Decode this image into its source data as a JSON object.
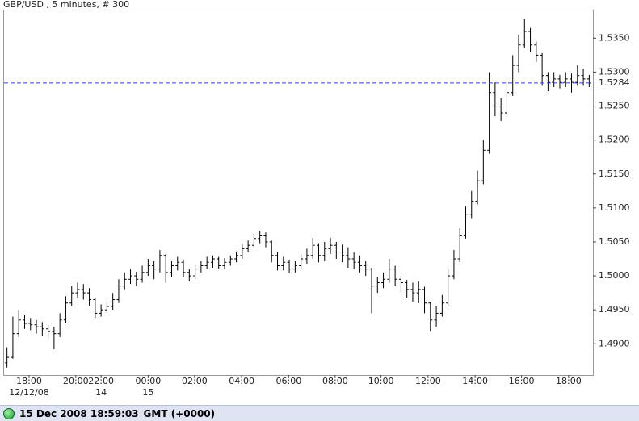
{
  "chart_data": {
    "type": "ohlc",
    "title": "GBP/USD , 5 minutes, # 300",
    "color": "#000000",
    "current_color": "#3344ee",
    "open": [
      1.4872,
      1.488,
      1.4915,
      1.4935,
      1.493,
      1.4928,
      1.4925,
      1.4922,
      1.4918,
      1.4915,
      1.4935,
      1.496,
      1.4975,
      1.498,
      1.4975,
      1.4965,
      1.4945,
      1.495,
      1.4955,
      1.4965,
      1.4985,
      1.4995,
      1.5,
      1.4995,
      1.5005,
      1.5015,
      1.501,
      1.503,
      1.5005,
      1.5015,
      1.502,
      1.5005,
      1.5,
      1.501,
      1.5015,
      1.502,
      1.5025,
      1.5015,
      1.502,
      1.5025,
      1.503,
      1.504,
      1.5045,
      1.5055,
      1.506,
      1.505,
      1.503,
      1.5015,
      1.502,
      1.501,
      1.5015,
      1.5025,
      1.503,
      1.5045,
      1.503,
      1.504,
      1.5045,
      1.5035,
      1.503,
      1.5025,
      1.502,
      1.5015,
      1.501,
      1.4985,
      1.499,
      1.4995,
      1.501,
      1.4995,
      1.499,
      1.498,
      1.4975,
      1.498,
      1.496,
      1.4935,
      1.4945,
      1.496,
      1.5,
      1.5025,
      1.506,
      1.509,
      1.511,
      1.514,
      1.5185,
      1.527,
      1.525,
      1.524,
      1.527,
      1.531,
      1.534,
      1.536,
      1.534,
      1.5325,
      1.5295,
      1.5285,
      1.529,
      1.5285,
      1.529,
      1.5285,
      1.5295,
      1.529
    ],
    "high": [
      1.4895,
      1.494,
      1.495,
      1.4942,
      1.4938,
      1.4935,
      1.4932,
      1.4928,
      1.4925,
      1.4945,
      1.497,
      1.4985,
      1.499,
      1.4988,
      1.4982,
      1.4968,
      1.4958,
      1.4962,
      1.4975,
      1.4995,
      1.5005,
      1.501,
      1.5006,
      1.5015,
      1.5025,
      1.5022,
      1.5038,
      1.5032,
      1.5022,
      1.5028,
      1.5024,
      1.501,
      1.5016,
      1.5022,
      1.5028,
      1.503,
      1.5028,
      1.5026,
      1.503,
      1.5036,
      1.5046,
      1.5052,
      1.5062,
      1.5066,
      1.5064,
      1.5052,
      1.5035,
      1.5028,
      1.5024,
      1.5022,
      1.5032,
      1.504,
      1.5056,
      1.5048,
      1.505,
      1.5056,
      1.505,
      1.5046,
      1.5042,
      1.5035,
      1.503,
      1.5022,
      1.5012,
      1.4998,
      1.5005,
      1.5025,
      1.5015,
      1.5,
      1.4994,
      1.499,
      1.4992,
      1.4984,
      1.4962,
      1.4955,
      1.4972,
      1.501,
      1.5038,
      1.507,
      1.5102,
      1.5125,
      1.5155,
      1.52,
      1.53,
      1.5285,
      1.5262,
      1.529,
      1.5325,
      1.5355,
      1.5378,
      1.5365,
      1.5345,
      1.5328,
      1.53,
      1.53,
      1.5296,
      1.53,
      1.5298,
      1.531,
      1.5305,
      1.5296
    ],
    "low": [
      1.4865,
      1.4878,
      1.491,
      1.4922,
      1.492,
      1.4915,
      1.4912,
      1.4908,
      1.4892,
      1.491,
      1.493,
      1.4955,
      1.4968,
      1.4965,
      1.4955,
      1.4938,
      1.494,
      1.4945,
      1.495,
      1.496,
      1.498,
      1.4988,
      1.4985,
      1.499,
      1.5,
      1.4995,
      1.5005,
      1.499,
      1.4998,
      1.5008,
      1.4998,
      1.4992,
      1.4995,
      1.5005,
      1.501,
      1.5012,
      1.501,
      1.501,
      1.5015,
      1.502,
      1.5025,
      1.5035,
      1.504,
      1.5048,
      1.5042,
      1.502,
      1.5008,
      1.5008,
      1.5004,
      1.5005,
      1.501,
      1.5018,
      1.5025,
      1.502,
      1.5022,
      1.5032,
      1.5025,
      1.502,
      1.5012,
      1.501,
      1.5005,
      1.5,
      1.4945,
      1.4975,
      1.4982,
      1.499,
      1.4985,
      1.4975,
      1.4968,
      1.4962,
      1.496,
      1.4945,
      1.4918,
      1.4925,
      1.494,
      1.4955,
      1.4995,
      1.502,
      1.5055,
      1.5085,
      1.5105,
      1.5135,
      1.518,
      1.5235,
      1.5228,
      1.5235,
      1.5265,
      1.53,
      1.5335,
      1.533,
      1.5315,
      1.528,
      1.5272,
      1.5278,
      1.5276,
      1.5278,
      1.527,
      1.528,
      1.528,
      1.5278
    ],
    "close": [
      1.488,
      1.4915,
      1.4935,
      1.493,
      1.4928,
      1.4925,
      1.4922,
      1.4918,
      1.4915,
      1.4935,
      1.496,
      1.4975,
      1.498,
      1.4975,
      1.4965,
      1.4945,
      1.495,
      1.4955,
      1.4965,
      1.4985,
      1.4995,
      1.5,
      1.4995,
      1.5005,
      1.5015,
      1.501,
      1.503,
      1.5005,
      1.5015,
      1.502,
      1.5005,
      1.5,
      1.501,
      1.5015,
      1.502,
      1.5025,
      1.5015,
      1.502,
      1.5025,
      1.503,
      1.504,
      1.5045,
      1.5055,
      1.506,
      1.505,
      1.503,
      1.5015,
      1.502,
      1.501,
      1.5015,
      1.5025,
      1.503,
      1.5045,
      1.503,
      1.504,
      1.5045,
      1.5035,
      1.503,
      1.5025,
      1.502,
      1.5015,
      1.501,
      1.4985,
      1.499,
      1.4995,
      1.501,
      1.4995,
      1.499,
      1.498,
      1.4975,
      1.498,
      1.496,
      1.4935,
      1.4945,
      1.496,
      1.5,
      1.5025,
      1.506,
      1.509,
      1.511,
      1.514,
      1.5185,
      1.527,
      1.525,
      1.524,
      1.527,
      1.531,
      1.534,
      1.536,
      1.534,
      1.5325,
      1.5295,
      1.5285,
      1.529,
      1.5285,
      1.529,
      1.5285,
      1.5295,
      1.529,
      1.5284
    ],
    "xlim": [
      0,
      100
    ],
    "xticks": [
      {
        "value": 4.26,
        "label": "18:00"
      },
      {
        "value": 12.2,
        "label": "20:00"
      },
      {
        "value": 16.5,
        "label": "22:00"
      },
      {
        "value": 24.5,
        "label": "00:00"
      },
      {
        "value": 32.4,
        "label": "02:00"
      },
      {
        "value": 40.4,
        "label": "04:00"
      },
      {
        "value": 48.4,
        "label": "06:00"
      },
      {
        "value": 56.3,
        "label": "08:00"
      },
      {
        "value": 64.1,
        "label": "10:00"
      },
      {
        "value": 72.1,
        "label": "12:00"
      },
      {
        "value": 80.1,
        "label": "14:00"
      },
      {
        "value": 88.0,
        "label": "16:00"
      },
      {
        "value": 96.0,
        "label": "18:00"
      }
    ],
    "date_ticks": [
      {
        "value": 4.26,
        "label": "12/12/08"
      },
      {
        "value": 16.5,
        "label": "14"
      },
      {
        "value": 24.5,
        "label": "15"
      }
    ],
    "ylim": [
      1.4854,
      1.5392
    ],
    "yticks": [
      {
        "value": 1.49,
        "label": "1.4900"
      },
      {
        "value": 1.495,
        "label": "1.4950"
      },
      {
        "value": 1.5,
        "label": "1.5000"
      },
      {
        "value": 1.505,
        "label": "1.5050"
      },
      {
        "value": 1.51,
        "label": "1.5100"
      },
      {
        "value": 1.515,
        "label": "1.5150"
      },
      {
        "value": 1.52,
        "label": "1.5200"
      },
      {
        "value": 1.525,
        "label": "1.5250"
      },
      {
        "value": 1.53,
        "label": "1.5300"
      },
      {
        "value": 1.535,
        "label": "1.5350"
      }
    ],
    "current": {
      "value": 1.5284,
      "label": "1.5284"
    }
  },
  "status": {
    "datetime": "15 Dec 2008 18:59:03",
    "timezone": "GMT (+0000)"
  }
}
